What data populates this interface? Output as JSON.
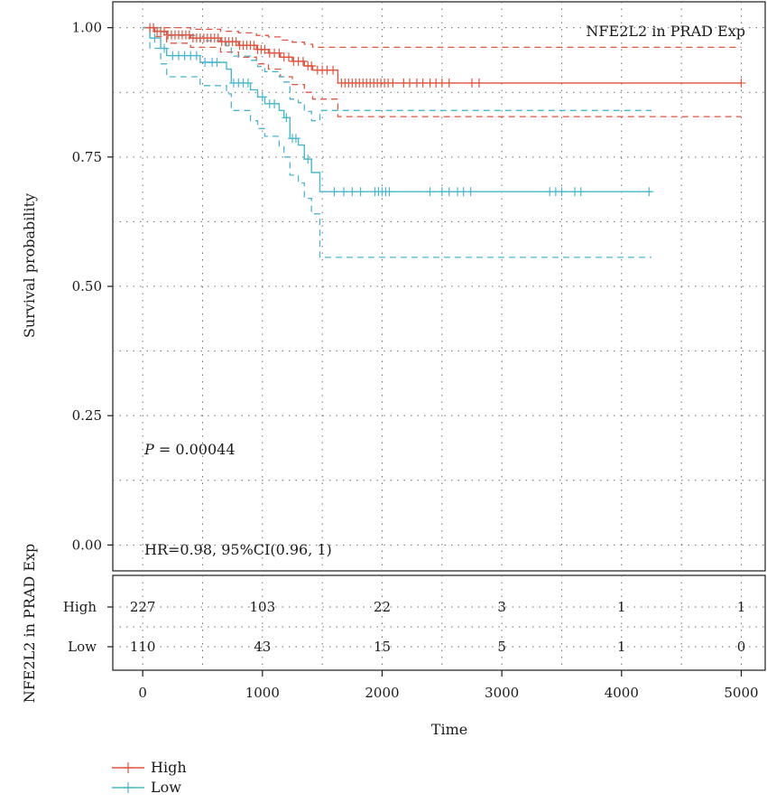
{
  "chart_data": {
    "type": "line",
    "subtype": "kaplan-meier",
    "title": "NFE2L2 in PRAD Exp",
    "xlabel": "Time",
    "ylabel": "Survival probability",
    "risk_table_ylabel": "NFE2L2 in PRAD Exp",
    "xlim": [
      -250,
      5200
    ],
    "ylim": [
      -0.05,
      1.05
    ],
    "xticks": [
      0,
      1000,
      2000,
      3000,
      4000,
      5000
    ],
    "yticks": [
      0.0,
      0.25,
      0.5,
      0.75,
      1.0
    ],
    "ytick_labels": [
      "0.00",
      "0.25",
      "0.50",
      "0.75",
      "1.00"
    ],
    "grid": true,
    "legend_position": "bottom-left",
    "annotations": {
      "p_prefix": "P",
      "p_value": " = 0.00044",
      "hr": "HR=0.98, 95%CI(0.96, 1)"
    },
    "series": [
      {
        "name": "High",
        "color": "#e2543f",
        "steps": [
          [
            0,
            1.0
          ],
          [
            100,
            0.993
          ],
          [
            200,
            0.986
          ],
          [
            400,
            0.98
          ],
          [
            650,
            0.973
          ],
          [
            800,
            0.966
          ],
          [
            950,
            0.958
          ],
          [
            1050,
            0.951
          ],
          [
            1150,
            0.943
          ],
          [
            1250,
            0.935
          ],
          [
            1350,
            0.926
          ],
          [
            1420,
            0.918
          ],
          [
            1630,
            0.893
          ],
          [
            5000,
            0.893
          ]
        ],
        "upper": [
          [
            0,
            1.0
          ],
          [
            200,
            1.0
          ],
          [
            400,
            0.997
          ],
          [
            650,
            0.993
          ],
          [
            800,
            0.99
          ],
          [
            950,
            0.985
          ],
          [
            1050,
            0.982
          ],
          [
            1150,
            0.976
          ],
          [
            1250,
            0.972
          ],
          [
            1350,
            0.968
          ],
          [
            1420,
            0.962
          ],
          [
            1630,
            0.962
          ],
          [
            5000,
            0.962
          ]
        ],
        "lower": [
          [
            0,
            1.0
          ],
          [
            100,
            0.983
          ],
          [
            200,
            0.97
          ],
          [
            400,
            0.962
          ],
          [
            650,
            0.953
          ],
          [
            800,
            0.943
          ],
          [
            950,
            0.93
          ],
          [
            1050,
            0.92
          ],
          [
            1150,
            0.905
          ],
          [
            1250,
            0.89
          ],
          [
            1350,
            0.875
          ],
          [
            1420,
            0.862
          ],
          [
            1630,
            0.828
          ],
          [
            5000,
            0.828
          ]
        ],
        "censor_times": [
          60,
          90,
          120,
          150,
          180,
          210,
          240,
          270,
          300,
          330,
          360,
          390,
          420,
          450,
          480,
          510,
          540,
          570,
          600,
          630,
          660,
          690,
          720,
          750,
          780,
          810,
          840,
          870,
          900,
          930,
          960,
          990,
          1020,
          1060,
          1100,
          1140,
          1180,
          1220,
          1260,
          1300,
          1340,
          1380,
          1410,
          1460,
          1500,
          1540,
          1590,
          1660,
          1690,
          1720,
          1750,
          1780,
          1810,
          1840,
          1870,
          1900,
          1930,
          1960,
          1990,
          2020,
          2050,
          2090,
          2180,
          2230,
          2290,
          2340,
          2400,
          2450,
          2500,
          2560,
          2750,
          2810,
          5000
        ]
      },
      {
        "name": "Low",
        "color": "#4ab8cc",
        "steps": [
          [
            0,
            1.0
          ],
          [
            60,
            0.98
          ],
          [
            150,
            0.96
          ],
          [
            200,
            0.946
          ],
          [
            480,
            0.933
          ],
          [
            700,
            0.92
          ],
          [
            740,
            0.893
          ],
          [
            900,
            0.88
          ],
          [
            960,
            0.866
          ],
          [
            1020,
            0.853
          ],
          [
            1140,
            0.84
          ],
          [
            1180,
            0.826
          ],
          [
            1230,
            0.786
          ],
          [
            1300,
            0.773
          ],
          [
            1350,
            0.746
          ],
          [
            1410,
            0.72
          ],
          [
            1480,
            0.683
          ],
          [
            4250,
            0.683
          ]
        ],
        "upper": [
          [
            0,
            1.0
          ],
          [
            60,
            1.0
          ],
          [
            150,
            0.992
          ],
          [
            200,
            0.985
          ],
          [
            480,
            0.975
          ],
          [
            700,
            0.965
          ],
          [
            740,
            0.945
          ],
          [
            900,
            0.937
          ],
          [
            960,
            0.925
          ],
          [
            1020,
            0.915
          ],
          [
            1140,
            0.905
          ],
          [
            1180,
            0.895
          ],
          [
            1230,
            0.862
          ],
          [
            1300,
            0.855
          ],
          [
            1350,
            0.838
          ],
          [
            1410,
            0.82
          ],
          [
            1480,
            0.84
          ],
          [
            4250,
            0.84
          ]
        ],
        "lower": [
          [
            0,
            1.0
          ],
          [
            60,
            0.96
          ],
          [
            150,
            0.93
          ],
          [
            200,
            0.905
          ],
          [
            480,
            0.888
          ],
          [
            700,
            0.872
          ],
          [
            740,
            0.84
          ],
          [
            900,
            0.82
          ],
          [
            960,
            0.805
          ],
          [
            1020,
            0.79
          ],
          [
            1140,
            0.77
          ],
          [
            1180,
            0.75
          ],
          [
            1230,
            0.715
          ],
          [
            1300,
            0.7
          ],
          [
            1350,
            0.67
          ],
          [
            1410,
            0.64
          ],
          [
            1480,
            0.556
          ],
          [
            4250,
            0.556
          ]
        ],
        "censor_times": [
          100,
          180,
          250,
          300,
          350,
          400,
          450,
          520,
          580,
          620,
          760,
          800,
          840,
          880,
          1000,
          1060,
          1100,
          1200,
          1250,
          1280,
          1380,
          1600,
          1680,
          1750,
          1820,
          1940,
          1970,
          2000,
          2030,
          2060,
          2400,
          2500,
          2560,
          2630,
          2680,
          2740,
          3400,
          3450,
          3500,
          3610,
          3660,
          4230
        ]
      }
    ],
    "risk_table": {
      "times": [
        0,
        1000,
        2000,
        3000,
        4000,
        5000
      ],
      "rows": [
        {
          "name": "High",
          "counts": [
            "227",
            "103",
            "22",
            "3",
            "1",
            "1"
          ]
        },
        {
          "name": "Low",
          "counts": [
            "110",
            "43",
            "15",
            "5",
            "1",
            "0"
          ]
        }
      ]
    }
  }
}
